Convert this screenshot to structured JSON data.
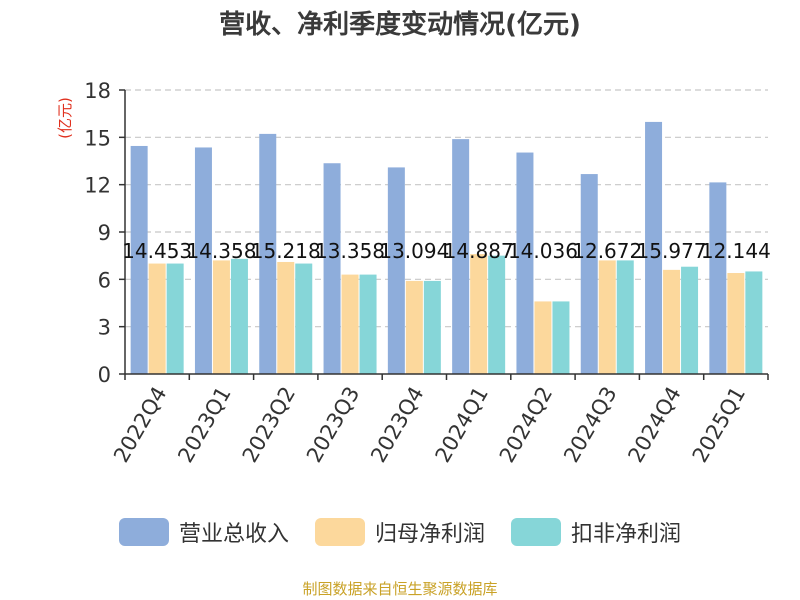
{
  "title": "营收、净利季度变动情况(亿元)",
  "footer": "制图数据来自恒生聚源数据库",
  "colors": {
    "revenue": "#8eaddb",
    "parent_net_profit": "#fcd89c",
    "non_recurring_net_profit": "#86d6d8"
  },
  "legend": [
    {
      "key": "revenue",
      "label": "营业总收入"
    },
    {
      "key": "parent_net_profit",
      "label": "归母净利润"
    },
    {
      "key": "non_recurring_net_profit",
      "label": "扣非净利润"
    }
  ],
  "chart_data": {
    "type": "bar",
    "title": "营收、净利季度变动情况(亿元)",
    "ylabel": "(亿元)",
    "xlabel": "",
    "ylim": [
      0,
      18
    ],
    "yticks": [
      0,
      3,
      6,
      9,
      12,
      15,
      18
    ],
    "categories": [
      "2022Q4",
      "2023Q1",
      "2023Q2",
      "2023Q3",
      "2023Q4",
      "2024Q1",
      "2024Q2",
      "2024Q3",
      "2024Q4",
      "2025Q1"
    ],
    "series": [
      {
        "name": "营业总收入",
        "values": [
          14.453,
          14.358,
          15.218,
          13.358,
          13.094,
          14.887,
          14.036,
          12.672,
          15.977,
          12.144
        ]
      },
      {
        "name": "归母净利润",
        "values": [
          7.0,
          7.2,
          7.1,
          6.3,
          5.9,
          7.6,
          4.6,
          7.2,
          6.6,
          6.4
        ]
      },
      {
        "name": "扣非净利润",
        "values": [
          7.0,
          7.3,
          7.0,
          6.3,
          5.9,
          7.5,
          4.6,
          7.2,
          6.8,
          6.5
        ]
      }
    ],
    "data_labels": [
      "14.453",
      "14.358",
      "15.218",
      "13.358",
      "13.094",
      "14.887",
      "14.036",
      "12.672",
      "15.977",
      "12.144"
    ],
    "grid": true,
    "legend_position": "bottom"
  }
}
